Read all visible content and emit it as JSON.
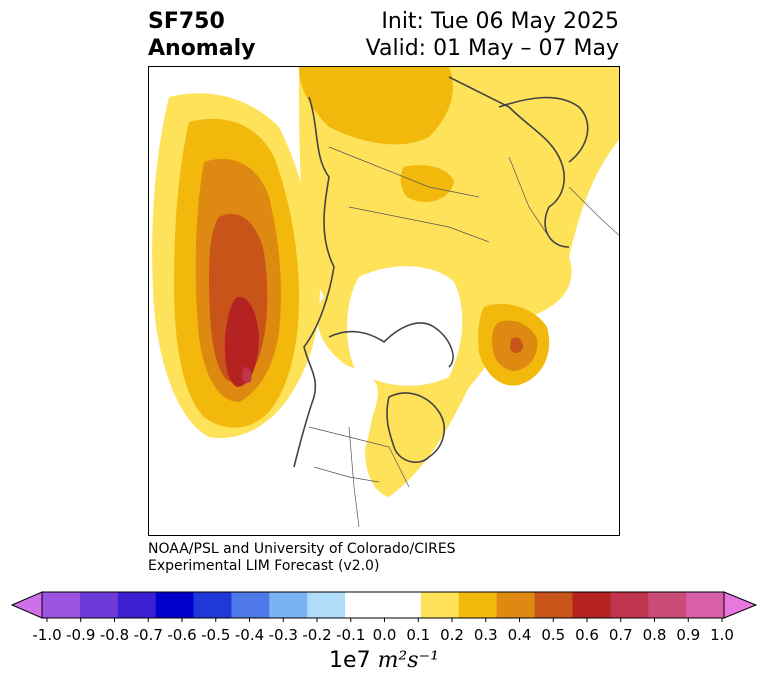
{
  "title": {
    "variable": "SF750",
    "subtitle": "Anomaly",
    "init": "Init: Tue 06 May 2025",
    "valid": "Valid: 01 May – 07 May"
  },
  "credit": {
    "line1": "NOAA/PSL and University of Colorado/CIRES",
    "line2": "Experimental LIM Forecast (v2.0)"
  },
  "colorbar": {
    "ticks": [
      "-1.0",
      "-0.9",
      "-0.8",
      "-0.7",
      "-0.6",
      "-0.5",
      "-0.4",
      "-0.3",
      "-0.2",
      "-0.1",
      "0.0",
      "0.1",
      "0.2",
      "0.3",
      "0.4",
      "0.5",
      "0.6",
      "0.7",
      "0.8",
      "0.9",
      "1.0"
    ],
    "colors": [
      "#9a54e0",
      "#6b3ad8",
      "#3b1fd0",
      "#0000cc",
      "#2038d8",
      "#4f78e8",
      "#7ab2f2",
      "#b0dcfa",
      "#ffffff",
      "#ffffff",
      "#fde25a",
      "#f2b80c",
      "#de8a12",
      "#c8541a",
      "#b42222",
      "#c0344e",
      "#cc4c78",
      "#d860a8"
    ],
    "under_color": "#d070e8",
    "over_color": "#e878e0",
    "units_prefix": "1e7",
    "units_math": "m²s⁻¹"
  }
}
